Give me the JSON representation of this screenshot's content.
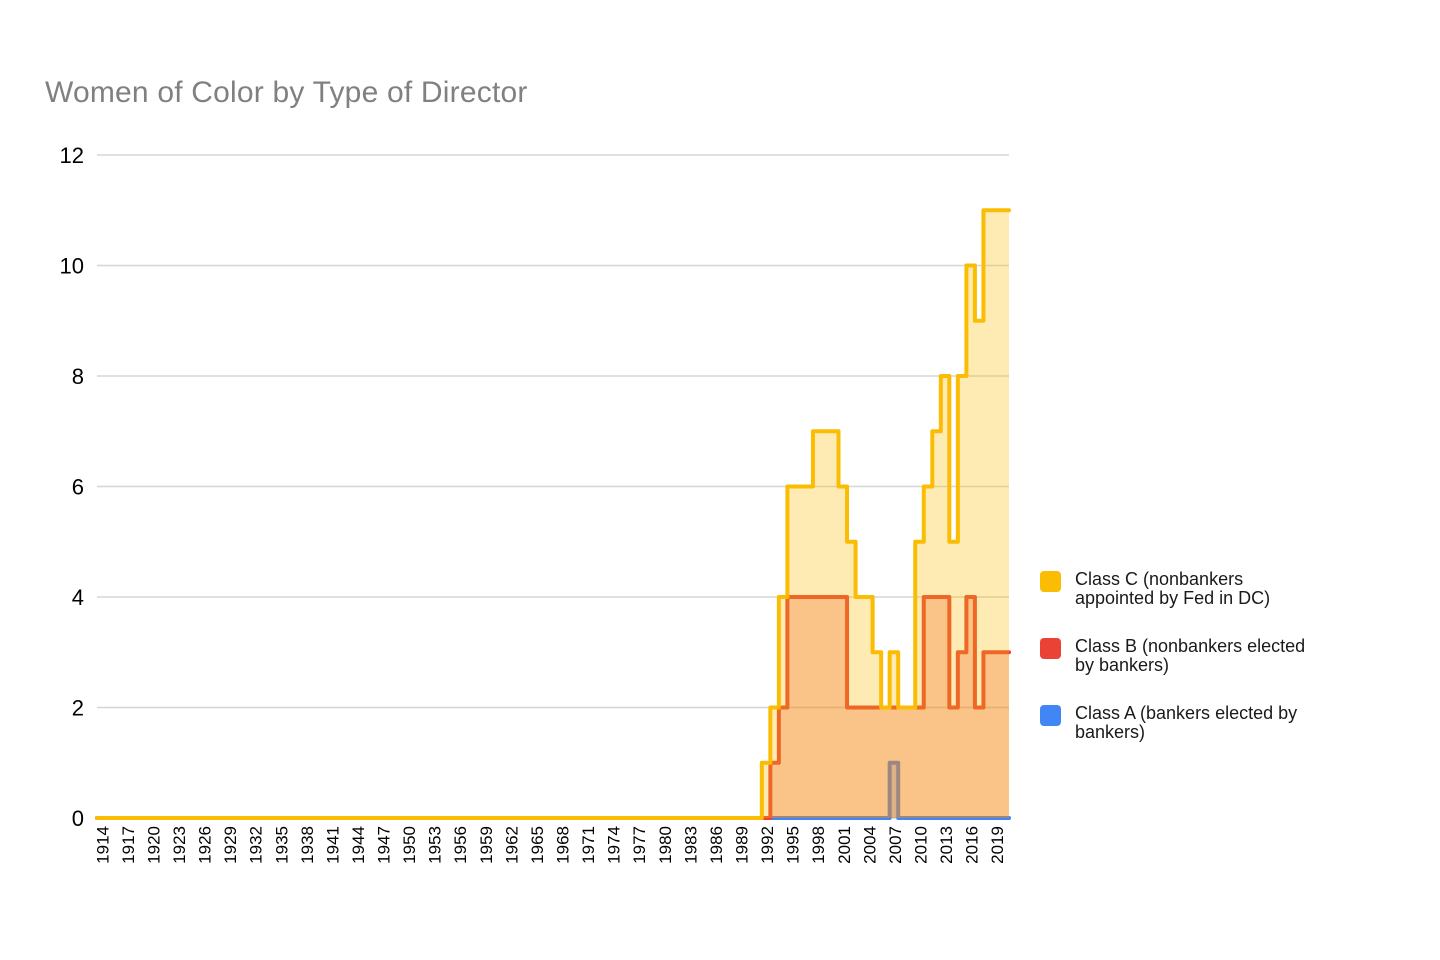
{
  "chart_data": {
    "type": "area",
    "stepped": true,
    "title": "Women of Color by Type of Director",
    "x_domain": [
      1914,
      2020
    ],
    "ylim": [
      0,
      12
    ],
    "grid": "horizontal",
    "legend_position": "right",
    "y_ticks": [
      0,
      2,
      4,
      6,
      8,
      10,
      12
    ],
    "x_tick_labels": [
      "1914",
      "1917",
      "1920",
      "1923",
      "1926",
      "1929",
      "1932",
      "1935",
      "1938",
      "1941",
      "1944",
      "1947",
      "1950",
      "1953",
      "1956",
      "1959",
      "1962",
      "1965",
      "1968",
      "1971",
      "1974",
      "1977",
      "1980",
      "1983",
      "1986",
      "1989",
      "1992",
      "1995",
      "1998",
      "2001",
      "2004",
      "2007",
      "2010",
      "2013",
      "2016",
      "2019"
    ],
    "series": [
      {
        "name": "Class C (nonbankers appointed by Fed in DC)",
        "color": "#FBBC04",
        "default_value": 0,
        "values_by_year": {
          "1992": 1,
          "1993": 2,
          "1994": 4,
          "1995": 6,
          "1996": 6,
          "1997": 6,
          "1998": 7,
          "1999": 7,
          "2000": 7,
          "2001": 6,
          "2002": 5,
          "2003": 4,
          "2004": 4,
          "2005": 3,
          "2006": 2,
          "2007": 3,
          "2008": 2,
          "2009": 2,
          "2010": 5,
          "2011": 6,
          "2012": 7,
          "2013": 8,
          "2014": 5,
          "2015": 8,
          "2016": 10,
          "2017": 9,
          "2018": 11,
          "2019": 11,
          "2020": 11
        }
      },
      {
        "name": "Class B (nonbankers elected by bankers)",
        "color": "#EA4335",
        "default_value": 0,
        "values_by_year": {
          "1993": 1,
          "1994": 2,
          "1995": 4,
          "1996": 4,
          "1997": 4,
          "1998": 4,
          "1999": 4,
          "2000": 4,
          "2001": 4,
          "2002": 2,
          "2003": 2,
          "2004": 2,
          "2005": 2,
          "2006": 2,
          "2007": 2,
          "2008": 2,
          "2009": 2,
          "2010": 2,
          "2011": 4,
          "2012": 4,
          "2013": 4,
          "2014": 2,
          "2015": 3,
          "2016": 4,
          "2017": 2,
          "2018": 3,
          "2019": 3,
          "2020": 3
        }
      },
      {
        "name": "Class A (bankers elected by bankers)",
        "color": "#4285F4",
        "default_value": 0,
        "values_by_year": {
          "2007": 1
        }
      }
    ],
    "fill_opacity": 0.3,
    "line_width": 4
  },
  "legend": {
    "items": [
      {
        "label": "Class C (nonbankers appointed by Fed in DC)",
        "color": "#FBBC04"
      },
      {
        "label": "Class B (nonbankers elected by bankers)",
        "color": "#EA4335"
      },
      {
        "label": "Class A (bankers elected by bankers)",
        "color": "#4285F4"
      }
    ]
  },
  "colors": {
    "title_text": "#808080",
    "axis_text": "#000000",
    "gridline": "#D6D6D6",
    "background": "#FFFFFF"
  }
}
